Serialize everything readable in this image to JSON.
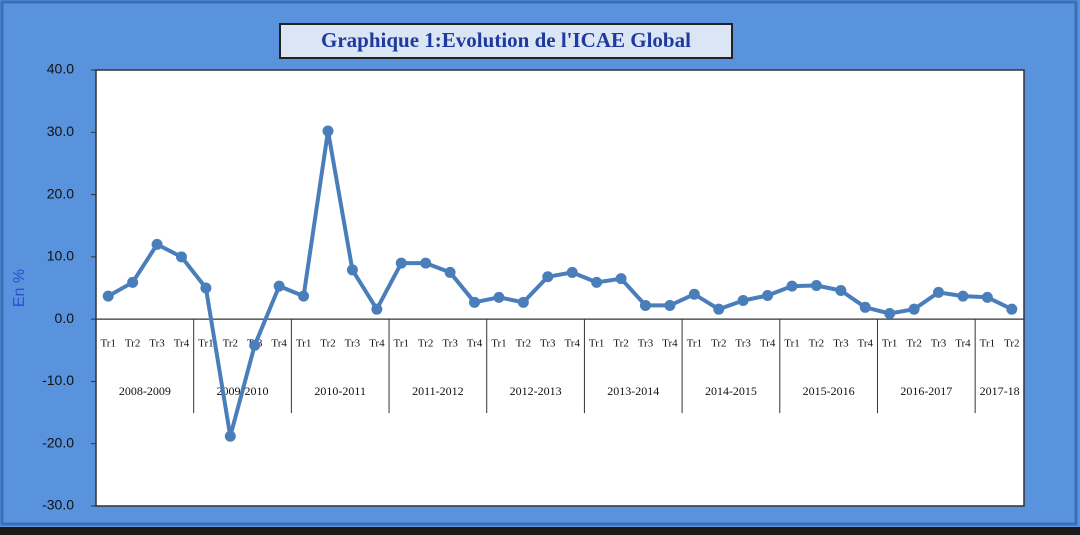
{
  "chart_data": {
    "type": "line",
    "title": "Graphique 1:Evolution de l'ICAE Global",
    "y_label": "En %",
    "groups": [
      {
        "label": "2008-2009",
        "categories": [
          "Tr1",
          "Tr2",
          "Tr3",
          "Tr4"
        ]
      },
      {
        "label": "2009-2010",
        "categories": [
          "Tr1",
          "Tr2",
          "Tr3",
          "Tr4"
        ]
      },
      {
        "label": "2010-2011",
        "categories": [
          "Tr1",
          "Tr2",
          "Tr3",
          "Tr4"
        ]
      },
      {
        "label": "2011-2012",
        "categories": [
          "Tr1",
          "Tr2",
          "Tr3",
          "Tr4"
        ]
      },
      {
        "label": "2012-2013",
        "categories": [
          "Tr1",
          "Tr2",
          "Tr3",
          "Tr4"
        ]
      },
      {
        "label": "2013-2014",
        "categories": [
          "Tr1",
          "Tr2",
          "Tr3",
          "Tr4"
        ]
      },
      {
        "label": "2014-2015",
        "categories": [
          "Tr1",
          "Tr2",
          "Tr3",
          "Tr4"
        ]
      },
      {
        "label": "2015-2016",
        "categories": [
          "Tr1",
          "Tr2",
          "Tr3",
          "Tr4"
        ]
      },
      {
        "label": "2016-2017",
        "categories": [
          "Tr1",
          "Tr2",
          "Tr3",
          "Tr4"
        ]
      },
      {
        "label": "2017-18",
        "categories": [
          "Tr1",
          "Tr2"
        ]
      }
    ],
    "series": [
      {
        "color": "#4a7ebb",
        "values": [
          3.7,
          5.9,
          12.0,
          10.0,
          5.0,
          -18.8,
          -4.2,
          5.3,
          3.7,
          30.2,
          7.9,
          1.6,
          9.0,
          9.0,
          7.5,
          2.7,
          3.5,
          2.7,
          6.8,
          7.5,
          5.9,
          6.5,
          2.2,
          2.2,
          4.0,
          1.6,
          3.0,
          3.8,
          5.3,
          5.4,
          4.6,
          1.9,
          0.9,
          1.6,
          4.3,
          3.7,
          3.5,
          1.6
        ]
      }
    ],
    "ylim": [
      -30,
      40
    ],
    "yticks": [
      {
        "value": -30,
        "label": "-30.0"
      },
      {
        "value": -20,
        "label": "-20.0"
      },
      {
        "value": -10,
        "label": "-10.0"
      },
      {
        "value": 0,
        "label": "0.0"
      },
      {
        "value": 10,
        "label": "10.0"
      },
      {
        "value": 20,
        "label": "20.0"
      },
      {
        "value": 30,
        "label": "30.0"
      },
      {
        "value": 40,
        "label": "40.0"
      }
    ],
    "grid": false
  }
}
